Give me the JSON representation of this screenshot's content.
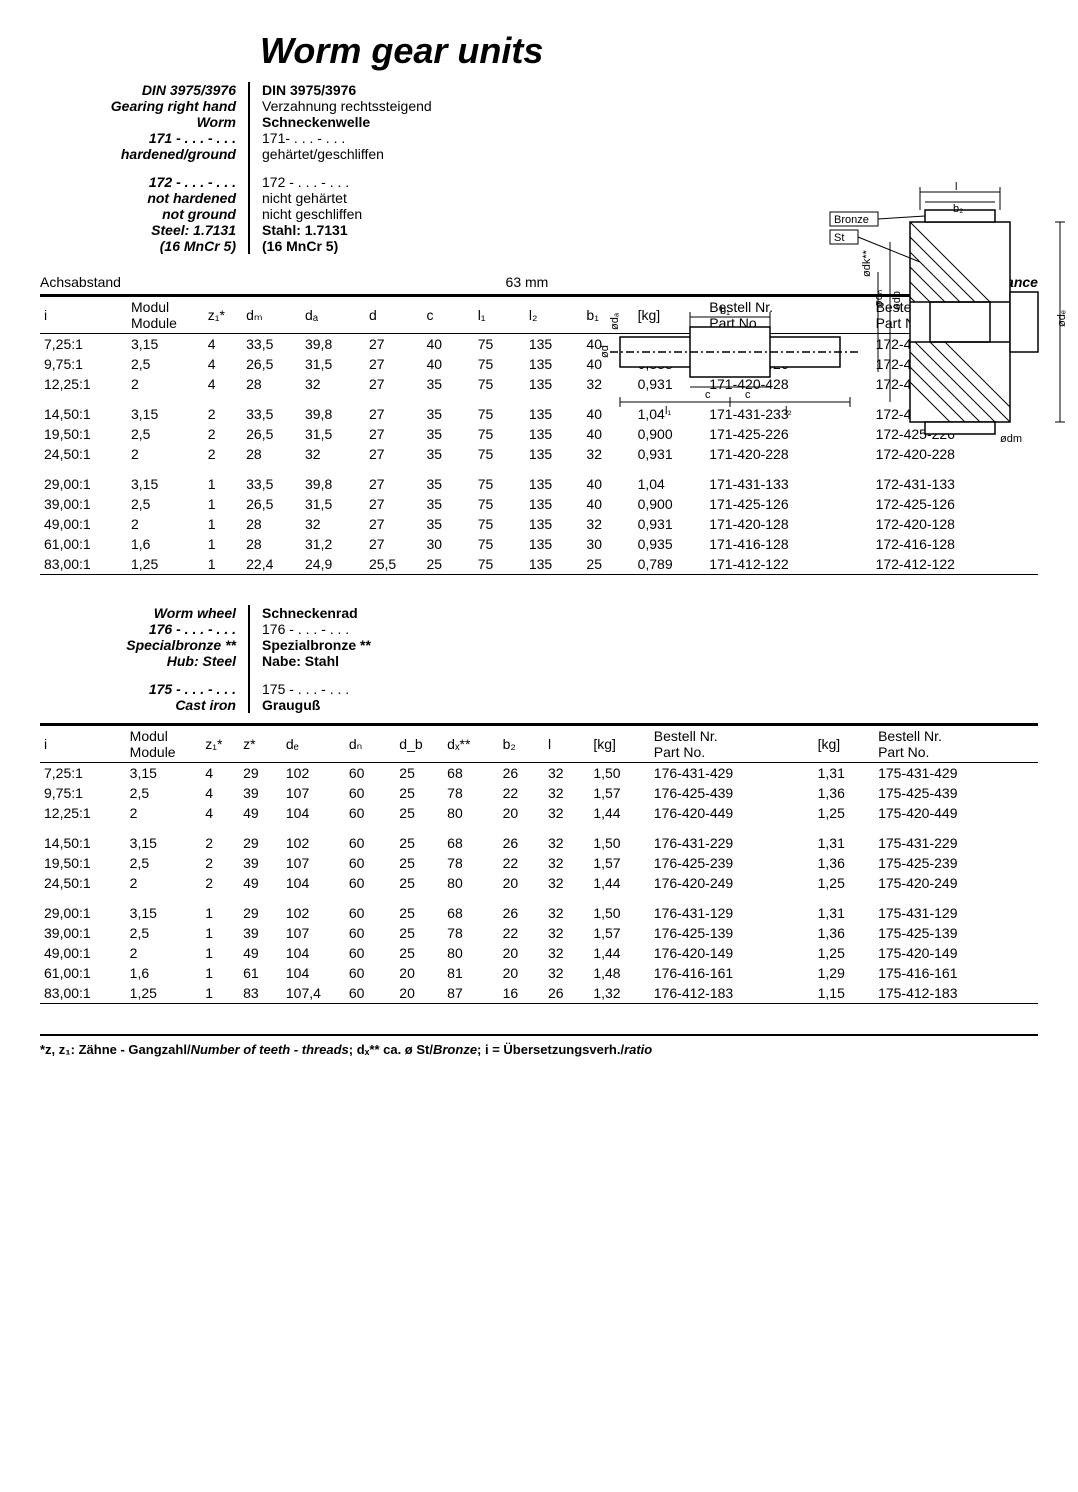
{
  "title": "Worm gear units",
  "header": {
    "left": {
      "din": "DIN 3975/3976",
      "gearing": "Gearing right hand",
      "worm": "Worm",
      "num171": "171 - . . . - . . .",
      "hardened": "hardened/ground",
      "num172": "172 - . . . - . . .",
      "not_hardened": "not hardened",
      "not_ground": "not ground",
      "steel": "Steel: 1.7131",
      "mncr": "(16 MnCr 5)"
    },
    "right": {
      "din": "DIN 3975/3976",
      "verzahnung": "Verzahnung rechtssteigend",
      "schneckenwelle": "Schneckenwelle",
      "num171": "171- . . . - . . .",
      "gehartet": "gehärtet/geschliffen",
      "num172": "172 - . . . - . . .",
      "nicht_gehartet": "nicht gehärtet",
      "nicht_geschliffen": "nicht geschliffen",
      "stahl": "Stahl: 1.7131",
      "mncr": "(16 MnCr 5)"
    }
  },
  "diagram_labels": {
    "bronze": "Bronze",
    "st": "St",
    "b1": "b₁",
    "b2": "b₂",
    "c1": "c",
    "c2": "c",
    "l1": "l₁",
    "l2": "l₂",
    "l": "l",
    "odk": "ødk**",
    "odn": "ødₙ",
    "odb": "ødb",
    "ode": "ødₑ",
    "odm": "ødm",
    "oda": "ødₐ",
    "od": "ød"
  },
  "axis": {
    "achsabstand": "Achsabstand",
    "value": "63 mm",
    "centre_distance": "Centre distance"
  },
  "table1": {
    "headers": [
      "i",
      "Modul\nModule",
      "z₁*",
      "dₘ",
      "dₐ",
      "d",
      "c",
      "l₁",
      "l₂",
      "b₁",
      "[kg]",
      "Bestell Nr.\nPart No.",
      "Bestell Nr.\nPart No."
    ],
    "groups": [
      [
        [
          "7,25:1",
          "3,15",
          "4",
          "33,5",
          "39,8",
          "27",
          "40",
          "75",
          "135",
          "40",
          "1,03",
          "171-431-433",
          "172-431-433"
        ],
        [
          "9,75:1",
          "2,5",
          "4",
          "26,5",
          "31,5",
          "27",
          "40",
          "75",
          "135",
          "40",
          "0,888",
          "171-425-426",
          "172-425-426"
        ],
        [
          "12,25:1",
          "2",
          "4",
          "28",
          "32",
          "27",
          "35",
          "75",
          "135",
          "32",
          "0,931",
          "171-420-428",
          "172-420-428"
        ]
      ],
      [
        [
          "14,50:1",
          "3,15",
          "2",
          "33,5",
          "39,8",
          "27",
          "35",
          "75",
          "135",
          "40",
          "1,04",
          "171-431-233",
          "172-431 233"
        ],
        [
          "19,50:1",
          "2,5",
          "2",
          "26,5",
          "31,5",
          "27",
          "35",
          "75",
          "135",
          "40",
          "0,900",
          "171-425-226",
          "172-425-226"
        ],
        [
          "24,50:1",
          "2",
          "2",
          "28",
          "32",
          "27",
          "35",
          "75",
          "135",
          "32",
          "0,931",
          "171-420-228",
          "172-420-228"
        ]
      ],
      [
        [
          "29,00:1",
          "3,15",
          "1",
          "33,5",
          "39,8",
          "27",
          "35",
          "75",
          "135",
          "40",
          "1,04",
          "171-431-133",
          "172-431-133"
        ],
        [
          "39,00:1",
          "2,5",
          "1",
          "26,5",
          "31,5",
          "27",
          "35",
          "75",
          "135",
          "40",
          "0,900",
          "171-425-126",
          "172-425-126"
        ],
        [
          "49,00:1",
          "2",
          "1",
          "28",
          "32",
          "27",
          "35",
          "75",
          "135",
          "32",
          "0,931",
          "171-420-128",
          "172-420-128"
        ],
        [
          "61,00:1",
          "1,6",
          "1",
          "28",
          "31,2",
          "27",
          "30",
          "75",
          "135",
          "30",
          "0,935",
          "171-416-128",
          "172-416-128"
        ],
        [
          "83,00:1",
          "1,25",
          "1",
          "22,4",
          "24,9",
          "25,5",
          "25",
          "75",
          "135",
          "25",
          "0,789",
          "171-412-122",
          "172-412-122"
        ]
      ]
    ]
  },
  "section2": {
    "left": {
      "worm_wheel": "Worm wheel",
      "num176": "176 - . . . - . . .",
      "specialbronze": "Specialbronze **",
      "hub": "Hub: Steel",
      "num175": "175 - . . . - . . .",
      "cast_iron": "Cast iron"
    },
    "right": {
      "schneckenrad": "Schneckenrad",
      "num176": "176 - . . . - . . .",
      "spezialbronze": "Spezialbronze **",
      "nabe": "Nabe: Stahl",
      "num175": "175 - . . . - . . .",
      "grauguss": "Grauguß"
    }
  },
  "table2": {
    "headers": [
      "i",
      "Modul\nModule",
      "z₁*",
      "z*",
      "dₑ",
      "dₙ",
      "d_b",
      "dₓ**",
      "b₂",
      "l",
      "[kg]",
      "Bestell Nr.\nPart No.",
      "[kg]",
      "Bestell Nr.\nPart No."
    ],
    "groups": [
      [
        [
          "7,25:1",
          "3,15",
          "4",
          "29",
          "102",
          "60",
          "25",
          "68",
          "26",
          "32",
          "1,50",
          "176-431-429",
          "1,31",
          "175-431-429"
        ],
        [
          "9,75:1",
          "2,5",
          "4",
          "39",
          "107",
          "60",
          "25",
          "78",
          "22",
          "32",
          "1,57",
          "176-425-439",
          "1,36",
          "175-425-439"
        ],
        [
          "12,25:1",
          "2",
          "4",
          "49",
          "104",
          "60",
          "25",
          "80",
          "20",
          "32",
          "1,44",
          "176-420-449",
          "1,25",
          "175-420-449"
        ]
      ],
      [
        [
          "14,50:1",
          "3,15",
          "2",
          "29",
          "102",
          "60",
          "25",
          "68",
          "26",
          "32",
          "1,50",
          "176-431-229",
          "1,31",
          "175-431-229"
        ],
        [
          "19,50:1",
          "2,5",
          "2",
          "39",
          "107",
          "60",
          "25",
          "78",
          "22",
          "32",
          "1,57",
          "176-425-239",
          "1,36",
          "175-425-239"
        ],
        [
          "24,50:1",
          "2",
          "2",
          "49",
          "104",
          "60",
          "25",
          "80",
          "20",
          "32",
          "1,44",
          "176-420-249",
          "1,25",
          "175-420-249"
        ]
      ],
      [
        [
          "29,00:1",
          "3,15",
          "1",
          "29",
          "102",
          "60",
          "25",
          "68",
          "26",
          "32",
          "1,50",
          "176-431-129",
          "1,31",
          "175-431-129"
        ],
        [
          "39,00:1",
          "2,5",
          "1",
          "39",
          "107",
          "60",
          "25",
          "78",
          "22",
          "32",
          "1,57",
          "176-425-139",
          "1,36",
          "175-425-139"
        ],
        [
          "49,00:1",
          "2",
          "1",
          "49",
          "104",
          "60",
          "25",
          "80",
          "20",
          "32",
          "1,44",
          "176-420-149",
          "1,25",
          "175-420-149"
        ],
        [
          "61,00:1",
          "1,6",
          "1",
          "61",
          "104",
          "60",
          "20",
          "81",
          "20",
          "32",
          "1,48",
          "176-416-161",
          "1,29",
          "175-416-161"
        ],
        [
          "83,00:1",
          "1,25",
          "1",
          "83",
          "107,4",
          "60",
          "20",
          "87",
          "16",
          "26",
          "1,32",
          "176-412-183",
          "1,15",
          "175-412-183"
        ]
      ]
    ]
  },
  "footnote": {
    "p1": "*z, z₁: Zähne - Gangzahl/",
    "p2": "Number of teeth - threads",
    "p3": "; dₓ** ca. ø St/",
    "p4": "Bronze",
    "p5": "; i = Übersetzungsverh./",
    "p6": "ratio"
  },
  "col_widths_t1": [
    "68",
    "60",
    "30",
    "46",
    "50",
    "45",
    "40",
    "40",
    "45",
    "40",
    "56",
    "130",
    "130"
  ],
  "col_widths_t2": [
    "68",
    "60",
    "30",
    "34",
    "50",
    "40",
    "38",
    "44",
    "36",
    "36",
    "48",
    "130",
    "48",
    "130"
  ]
}
